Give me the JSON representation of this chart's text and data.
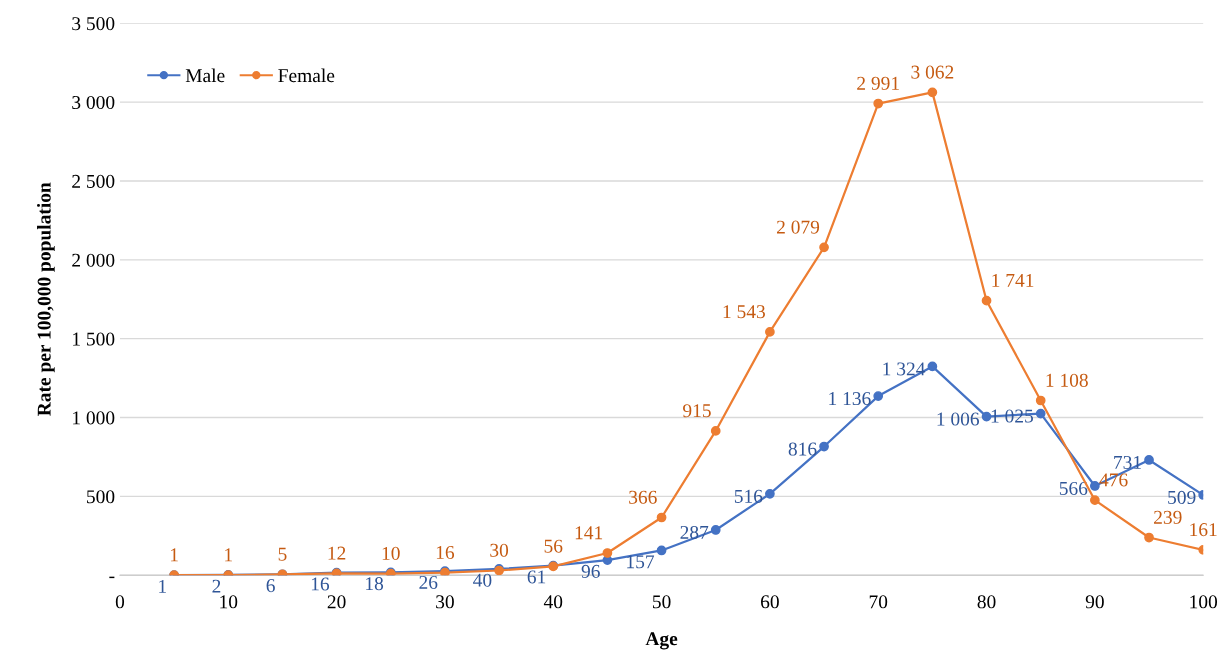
{
  "chart_data": {
    "type": "line",
    "xlabel": "Age",
    "ylabel": "Rate per 100,000 population",
    "x": [
      5,
      10,
      15,
      20,
      25,
      30,
      35,
      40,
      45,
      50,
      55,
      60,
      65,
      70,
      75,
      80,
      85,
      90,
      95,
      100
    ],
    "series": [
      {
        "name": "Male",
        "color": "#4472c4",
        "values": [
          1,
          2,
          6,
          16,
          18,
          26,
          40,
          61,
          96,
          157,
          287,
          516,
          816,
          1136,
          1324,
          1006,
          1025,
          566,
          731,
          509
        ],
        "value_labels": [
          "1",
          "2",
          "6",
          "16",
          "18",
          "26",
          "40",
          "61",
          "96",
          "157",
          "287",
          "516",
          "816",
          "1 136",
          "1 324",
          "1 006",
          "1 025",
          "566",
          "731",
          "509"
        ]
      },
      {
        "name": "Female",
        "color": "#ed7d31",
        "values": [
          1,
          1,
          5,
          12,
          10,
          16,
          30,
          56,
          141,
          366,
          915,
          1543,
          2079,
          2991,
          3062,
          1741,
          1108,
          476,
          239,
          161
        ],
        "value_labels": [
          "1",
          "1",
          "5",
          "12",
          "10",
          "16",
          "30",
          "56",
          "141",
          "366",
          "915",
          "1 543",
          "2 079",
          "2 991",
          "3 062",
          "1 741",
          "1 108",
          "476",
          "239",
          "161"
        ]
      }
    ],
    "xlim": [
      0,
      100
    ],
    "xticks": [
      0,
      10,
      20,
      30,
      40,
      50,
      60,
      70,
      80,
      90,
      100
    ],
    "ylim": [
      0,
      3500
    ],
    "yticks": [
      {
        "value": 0,
        "label": "-"
      },
      500,
      {
        "value": 1000,
        "label": "1 000"
      },
      {
        "value": 1500,
        "label": "1 500"
      },
      {
        "value": 2000,
        "label": "2 000"
      },
      {
        "value": 2500,
        "label": "2 500"
      },
      {
        "value": 3000,
        "label": "3 000"
      },
      {
        "value": 3500,
        "label": "3 500"
      }
    ],
    "grid": "y",
    "legend": "top left",
    "marker": "circle",
    "line_style": "solid"
  }
}
